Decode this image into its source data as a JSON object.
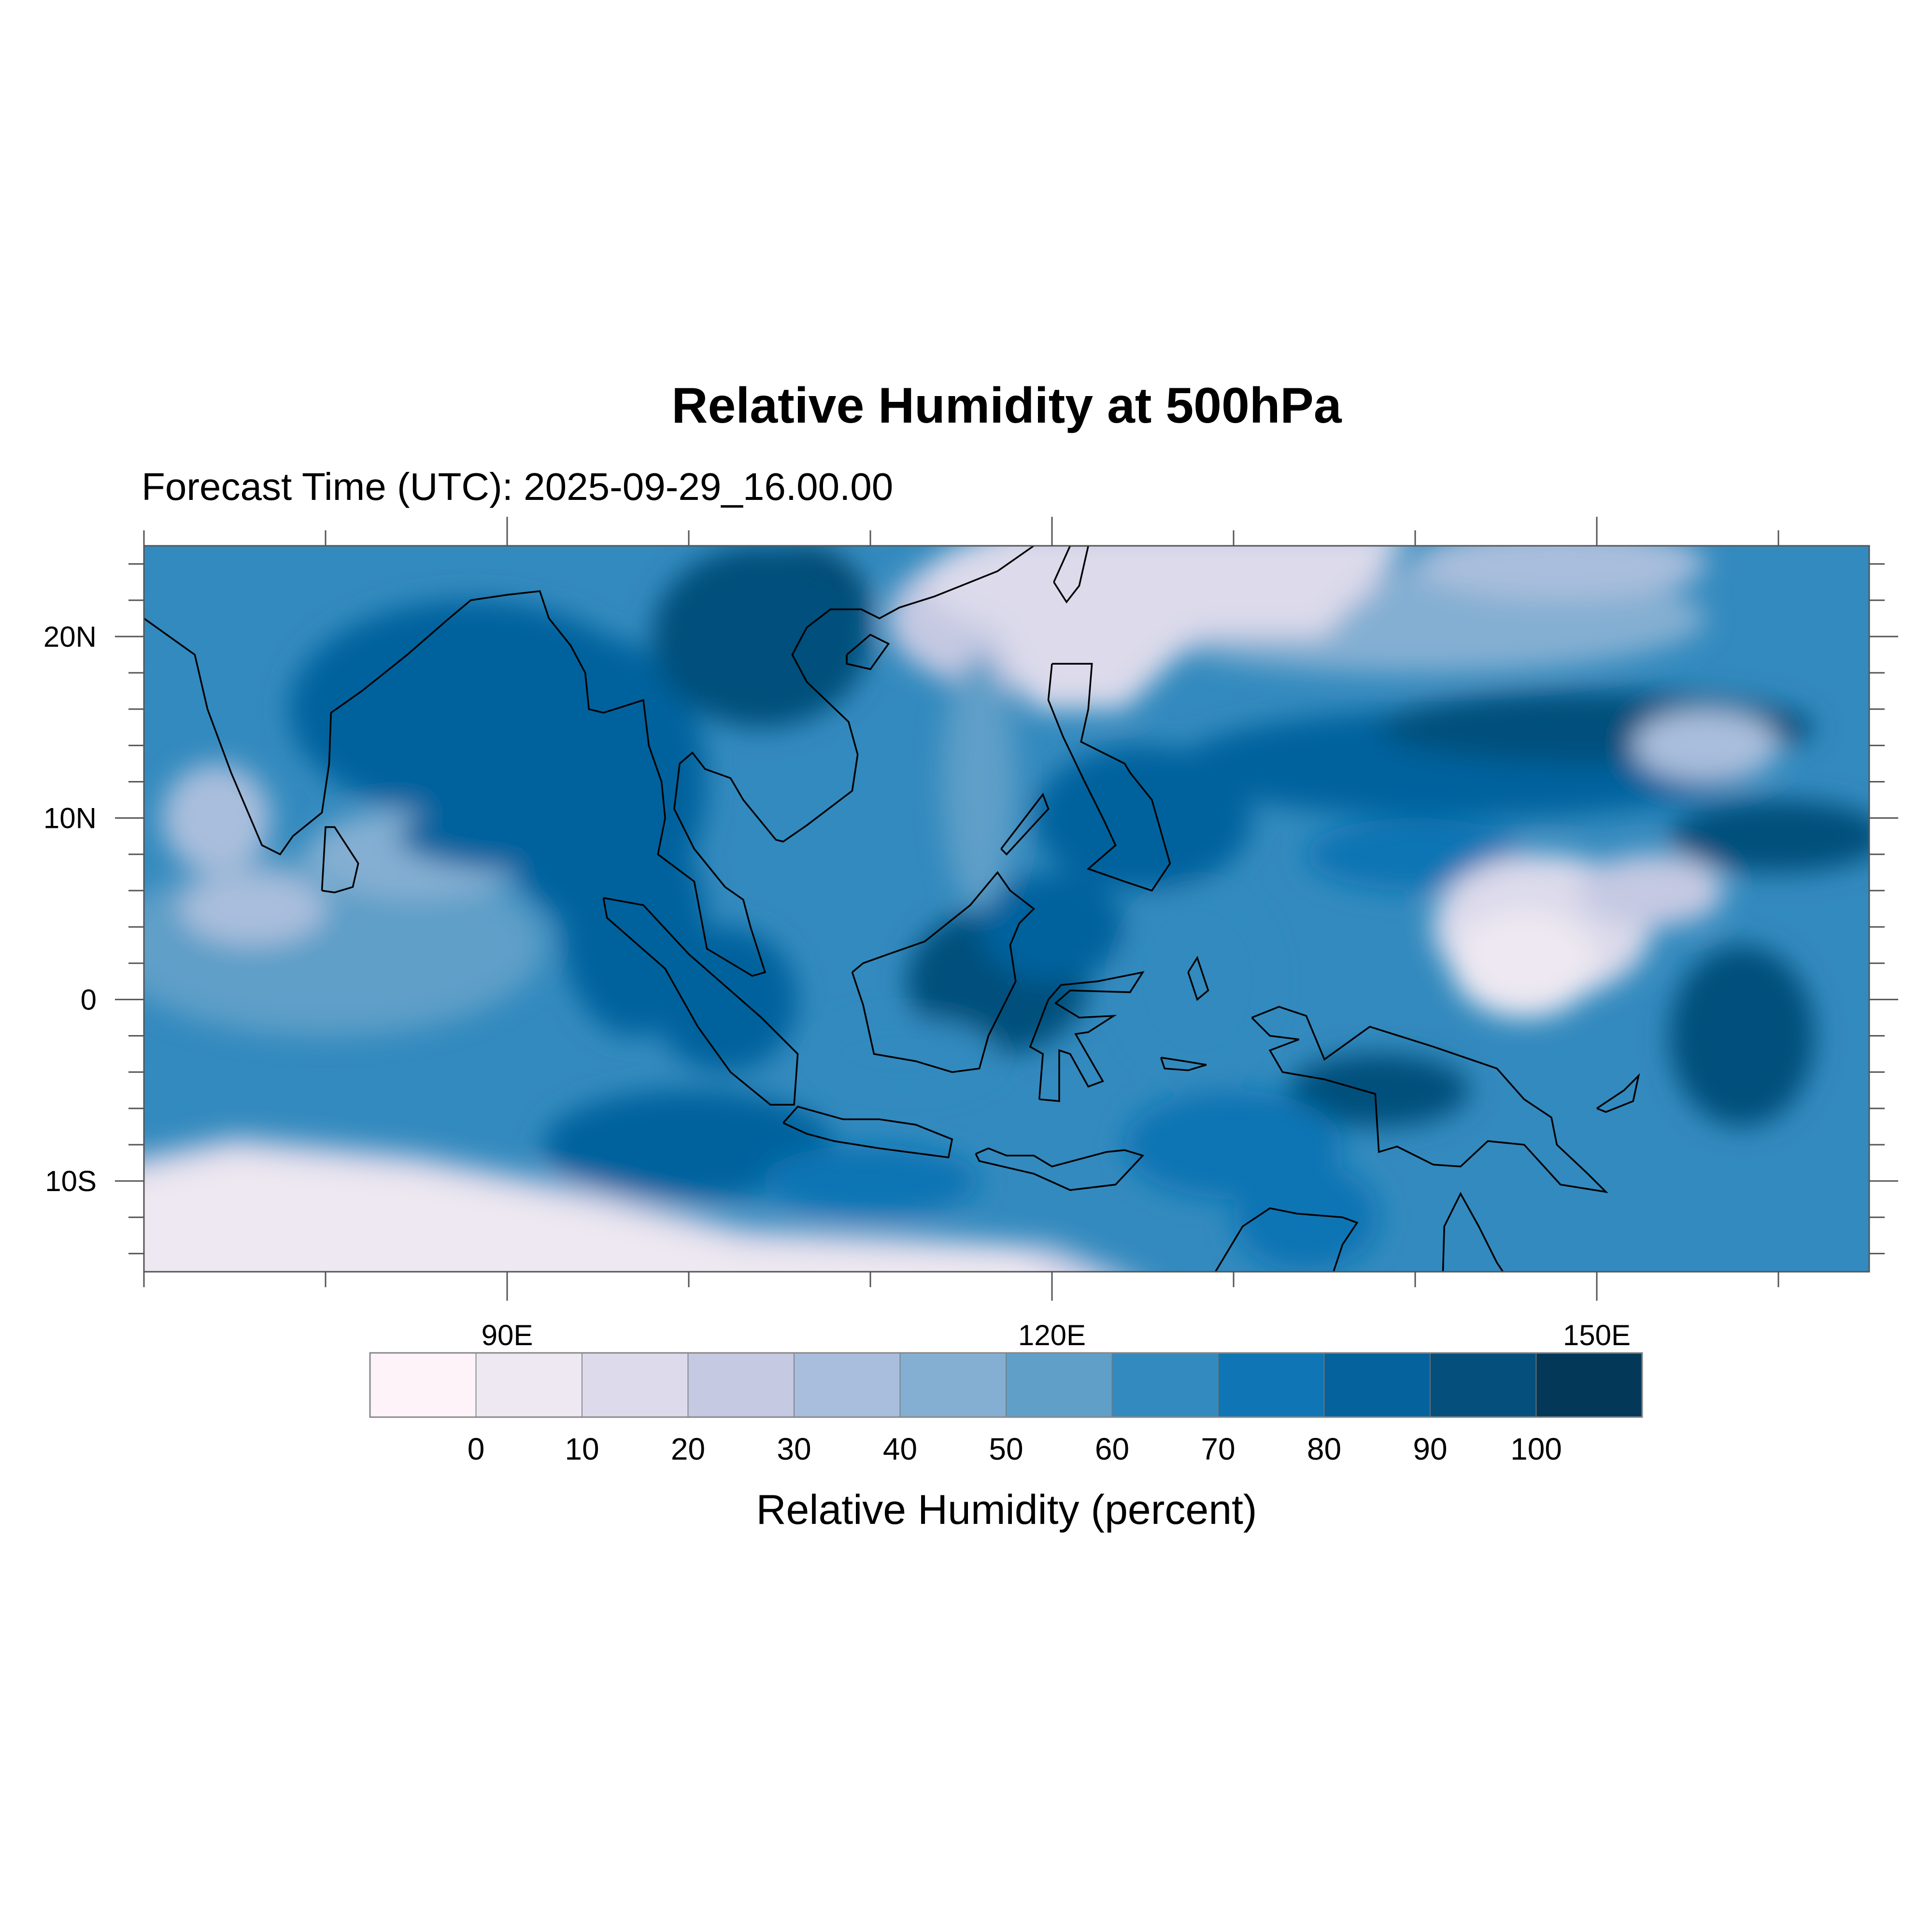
{
  "chart_data": {
    "type": "heatmap",
    "title": "Relative Humidity at 500hPa",
    "subtitle": "Forecast Time (UTC): 2025-09-29_16.00.00",
    "colorbar_label": "Relative Humidity (percent)",
    "lon_range": [
      70,
      165
    ],
    "lat_range": [
      -15,
      25
    ],
    "x_ticks": [
      {
        "value": 90,
        "label": "90E"
      },
      {
        "value": 120,
        "label": "120E"
      },
      {
        "value": 150,
        "label": "150E"
      }
    ],
    "y_ticks": [
      {
        "value": 20,
        "label": "20N"
      },
      {
        "value": 10,
        "label": "10N"
      },
      {
        "value": 0,
        "label": "0"
      },
      {
        "value": -10,
        "label": "10S"
      }
    ],
    "levels": [
      0,
      10,
      20,
      30,
      40,
      50,
      60,
      70,
      80,
      90,
      100
    ],
    "level_labels": [
      "0",
      "10",
      "20",
      "30",
      "40",
      "50",
      "60",
      "70",
      "80",
      "90",
      "100"
    ],
    "colors": [
      "#fff3fa",
      "#ede8f1",
      "#dcdaeb",
      "#c5c9e2",
      "#a9bedc",
      "#84afd2",
      "#5f9fc8",
      "#338abe",
      "#0f75b4",
      "#06629d",
      "#054f7c",
      "#033858"
    ]
  }
}
